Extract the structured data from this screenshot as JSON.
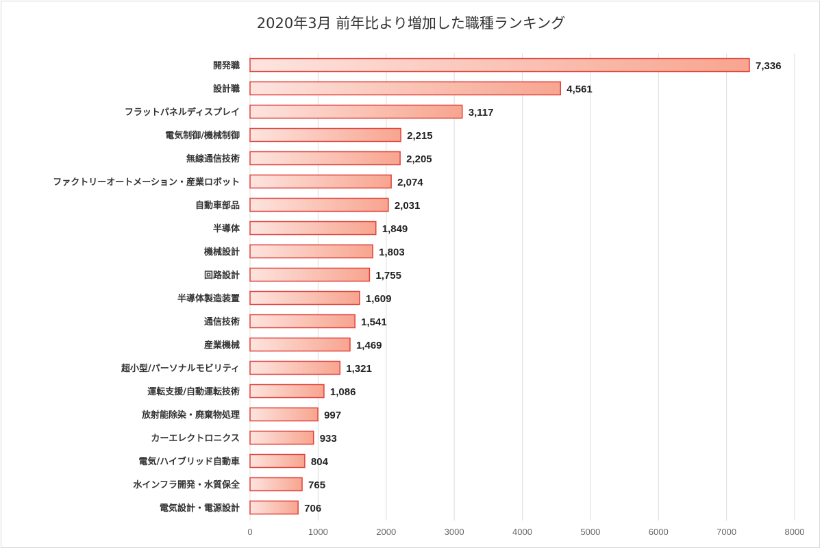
{
  "chart_data": {
    "type": "bar",
    "orientation": "horizontal",
    "title": "2020年3月 前年比より増加した職種ランキング",
    "xlabel": "",
    "ylabel": "",
    "xlim": [
      0,
      8000
    ],
    "xticks": [
      "0",
      "1000",
      "2000",
      "3000",
      "4000",
      "5000",
      "6000",
      "7000",
      "8000"
    ],
    "grid": true,
    "legend": "none",
    "colors": {
      "fill_start": "#fde4df",
      "fill_end": "#f7a58f",
      "border": "#e2403a",
      "grid": "#dcdcdc"
    },
    "categories": [
      "開発職",
      "設計職",
      "フラットパネルディスプレイ",
      "電気制御/機械制御",
      "無線通信技術",
      "ファクトリーオートメーション・産業ロボット",
      "自動車部品",
      "半導体",
      "機械設計",
      "回路設計",
      "半導体製造装置",
      "通信技術",
      "産業機械",
      "超小型/パーソナルモビリティ",
      "運転支援/自動運転技術",
      "放射能除染・廃棄物処理",
      "カーエレクトロニクス",
      "電気/ハイブリッド自動車",
      "水インフラ開発・水質保全",
      "電気設計・電源設計"
    ],
    "values": [
      7336,
      4561,
      3117,
      2215,
      2205,
      2074,
      2031,
      1849,
      1803,
      1755,
      1609,
      1541,
      1469,
      1321,
      1086,
      997,
      933,
      804,
      765,
      706
    ],
    "value_labels": [
      "7,336",
      "4,561",
      "3,117",
      "2,215",
      "2,205",
      "2,074",
      "2,031",
      "1,849",
      "1,803",
      "1,755",
      "1,609",
      "1,541",
      "1,469",
      "1,321",
      "1,086",
      "997",
      "933",
      "804",
      "765",
      "706"
    ]
  }
}
